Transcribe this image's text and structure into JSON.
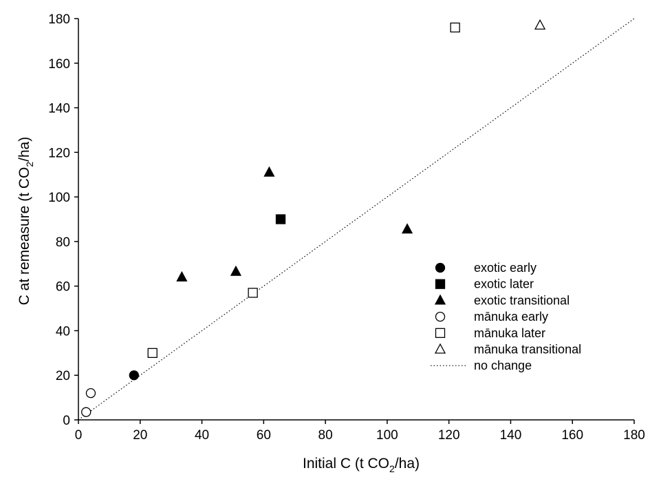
{
  "chart_data": {
    "type": "scatter",
    "xlabel": {
      "main": "Initial C (t CO",
      "sub": "2",
      "tail": "/ha)"
    },
    "ylabel": {
      "main": "C at remeasure (t CO",
      "sub": "2",
      "tail": "/ha)"
    },
    "xlim": [
      0,
      180
    ],
    "ylim": [
      0,
      180
    ],
    "xticks": [
      0,
      20,
      40,
      60,
      80,
      100,
      120,
      140,
      160,
      180
    ],
    "yticks": [
      0,
      20,
      40,
      60,
      80,
      100,
      120,
      140,
      160,
      180
    ],
    "grid": false,
    "legend_position": "lower-right",
    "series": [
      {
        "name": "exotic early",
        "marker": "circle",
        "filled": true,
        "points": [
          [
            18,
            20
          ]
        ]
      },
      {
        "name": "exotic later",
        "marker": "square",
        "filled": true,
        "points": [
          [
            65.5,
            90
          ]
        ]
      },
      {
        "name": "exotic transitional",
        "marker": "triangle",
        "filled": true,
        "points": [
          [
            33.5,
            64
          ],
          [
            51,
            66.5
          ],
          [
            61.8,
            111
          ],
          [
            106.5,
            85.5
          ]
        ]
      },
      {
        "name": "mānuka early",
        "marker": "circle",
        "filled": false,
        "points": [
          [
            2.5,
            3.5
          ],
          [
            4,
            12
          ]
        ]
      },
      {
        "name": "mānuka later",
        "marker": "square",
        "filled": false,
        "points": [
          [
            24,
            30
          ],
          [
            56.5,
            57
          ],
          [
            122,
            176
          ]
        ]
      },
      {
        "name": "mānuka transitional",
        "marker": "triangle",
        "filled": false,
        "points": [
          [
            149.5,
            177
          ]
        ]
      }
    ],
    "reference_line": {
      "name": "no change",
      "style": "dotted",
      "from": [
        0,
        0
      ],
      "to": [
        180,
        180
      ]
    }
  }
}
